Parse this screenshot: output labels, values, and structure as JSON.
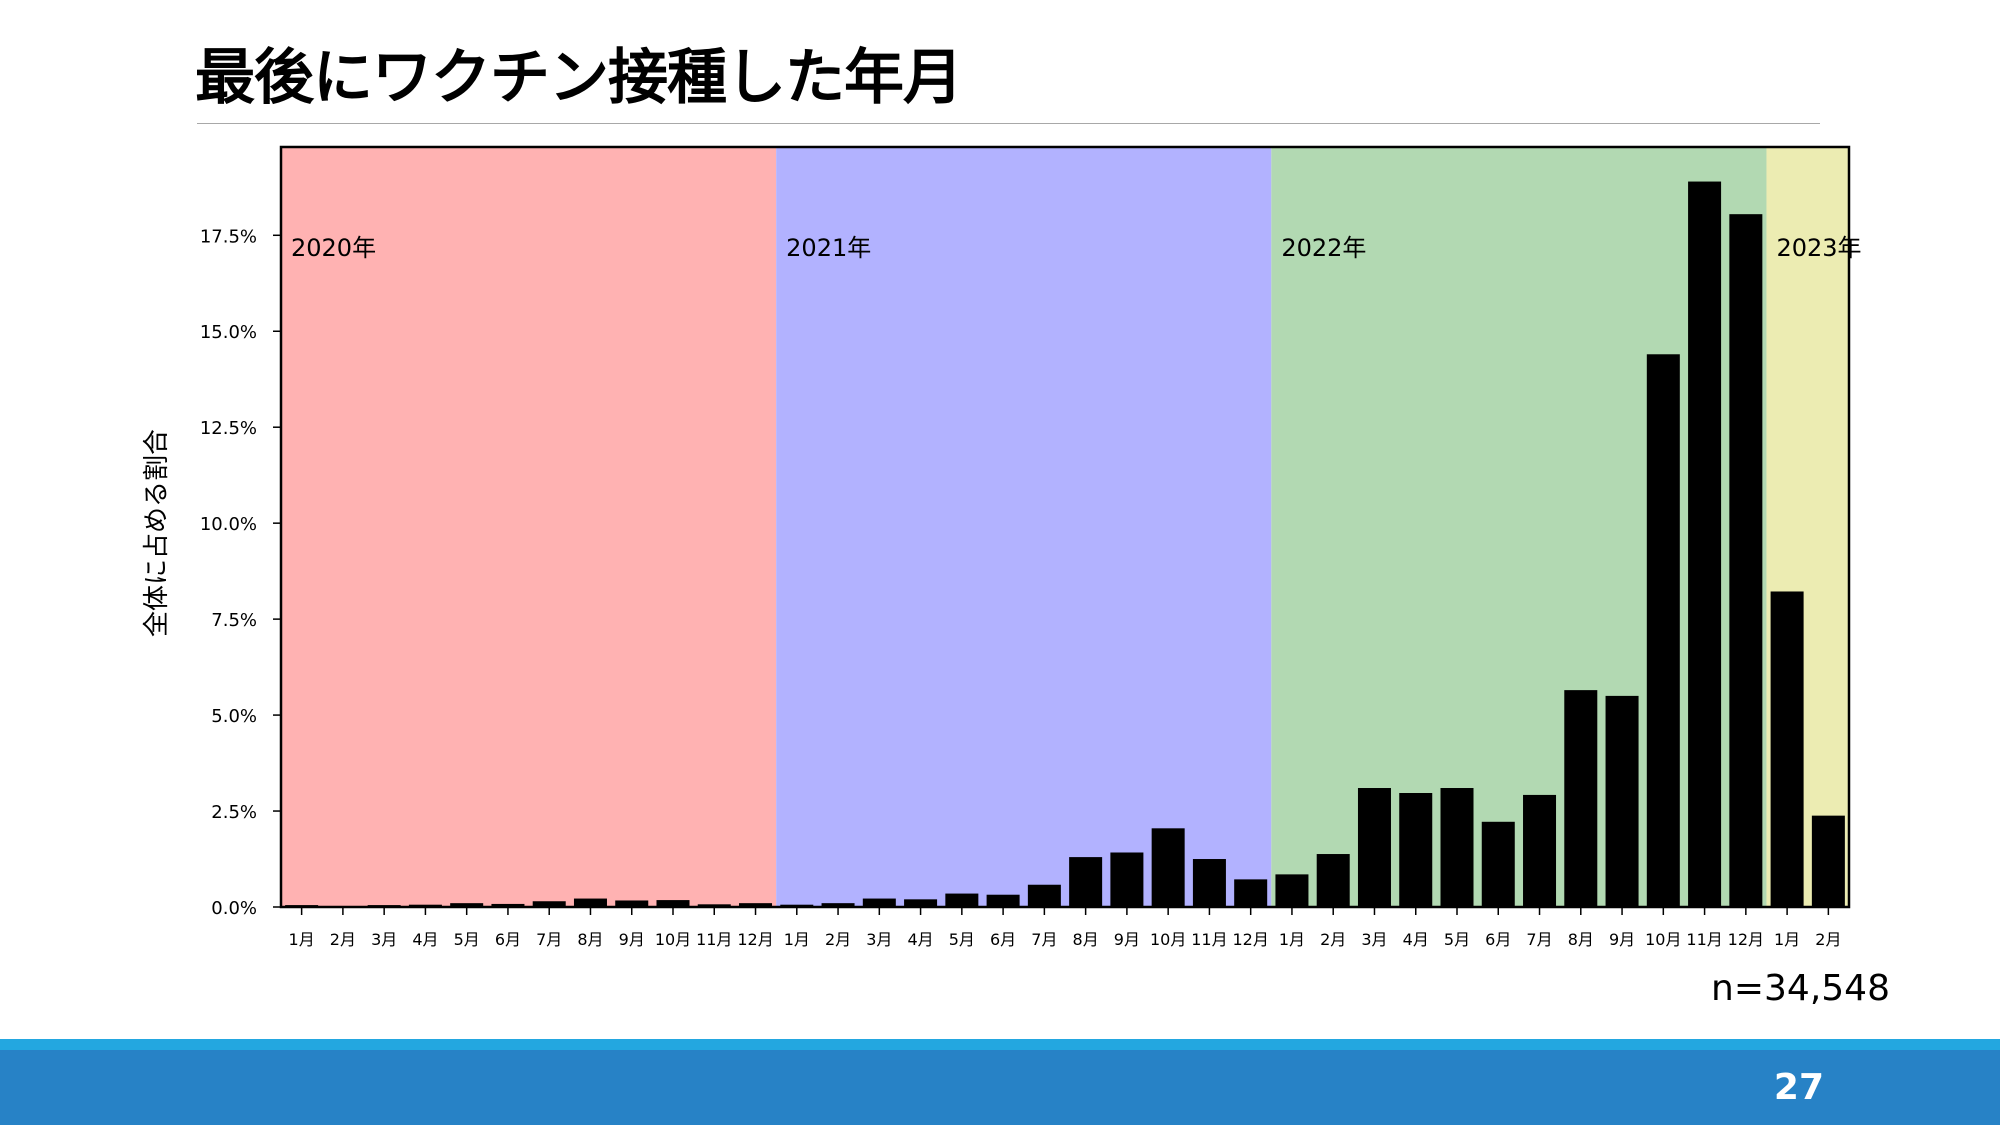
{
  "slide": {
    "title": "最後にワクチン接種した年月",
    "sample_size": "n=34,548",
    "page_number": "27"
  },
  "chart_data": {
    "type": "bar",
    "title": "",
    "xlabel": "",
    "ylabel": "全体に占める割合",
    "ylim": [
      0,
      19.8
    ],
    "yticks": [
      "0.0%",
      "2.5%",
      "5.0%",
      "7.5%",
      "10.0%",
      "12.5%",
      "15.0%",
      "17.5%"
    ],
    "ytick_values": [
      0,
      2.5,
      5,
      7.5,
      10,
      12.5,
      15,
      17.5
    ],
    "grid": false,
    "bar_color": "#000000",
    "year_bands": [
      {
        "label": "2020年",
        "color": "#ffb2b2",
        "months": 12
      },
      {
        "label": "2021年",
        "color": "#b2b2ff",
        "months": 12
      },
      {
        "label": "2022年",
        "color": "#b2d9b2",
        "months": 12
      },
      {
        "label": "2023年",
        "color": "#ececb2",
        "months": 2
      }
    ],
    "categories": [
      "1月",
      "2月",
      "3月",
      "4月",
      "5月",
      "6月",
      "7月",
      "8月",
      "9月",
      "10月",
      "11月",
      "12月",
      "1月",
      "2月",
      "3月",
      "4月",
      "5月",
      "6月",
      "7月",
      "8月",
      "9月",
      "10月",
      "11月",
      "12月",
      "1月",
      "2月",
      "3月",
      "4月",
      "5月",
      "6月",
      "7月",
      "8月",
      "9月",
      "10月",
      "11月",
      "12月",
      "1月",
      "2月"
    ],
    "values": [
      0.05,
      0.02,
      0.05,
      0.06,
      0.1,
      0.08,
      0.15,
      0.22,
      0.17,
      0.18,
      0.07,
      0.1,
      0.06,
      0.1,
      0.22,
      0.2,
      0.35,
      0.32,
      0.58,
      1.3,
      1.42,
      2.05,
      1.25,
      0.72,
      0.85,
      1.38,
      3.1,
      2.97,
      3.1,
      2.22,
      2.92,
      5.65,
      5.5,
      14.4,
      18.9,
      18.05,
      8.22,
      2.38
    ]
  }
}
